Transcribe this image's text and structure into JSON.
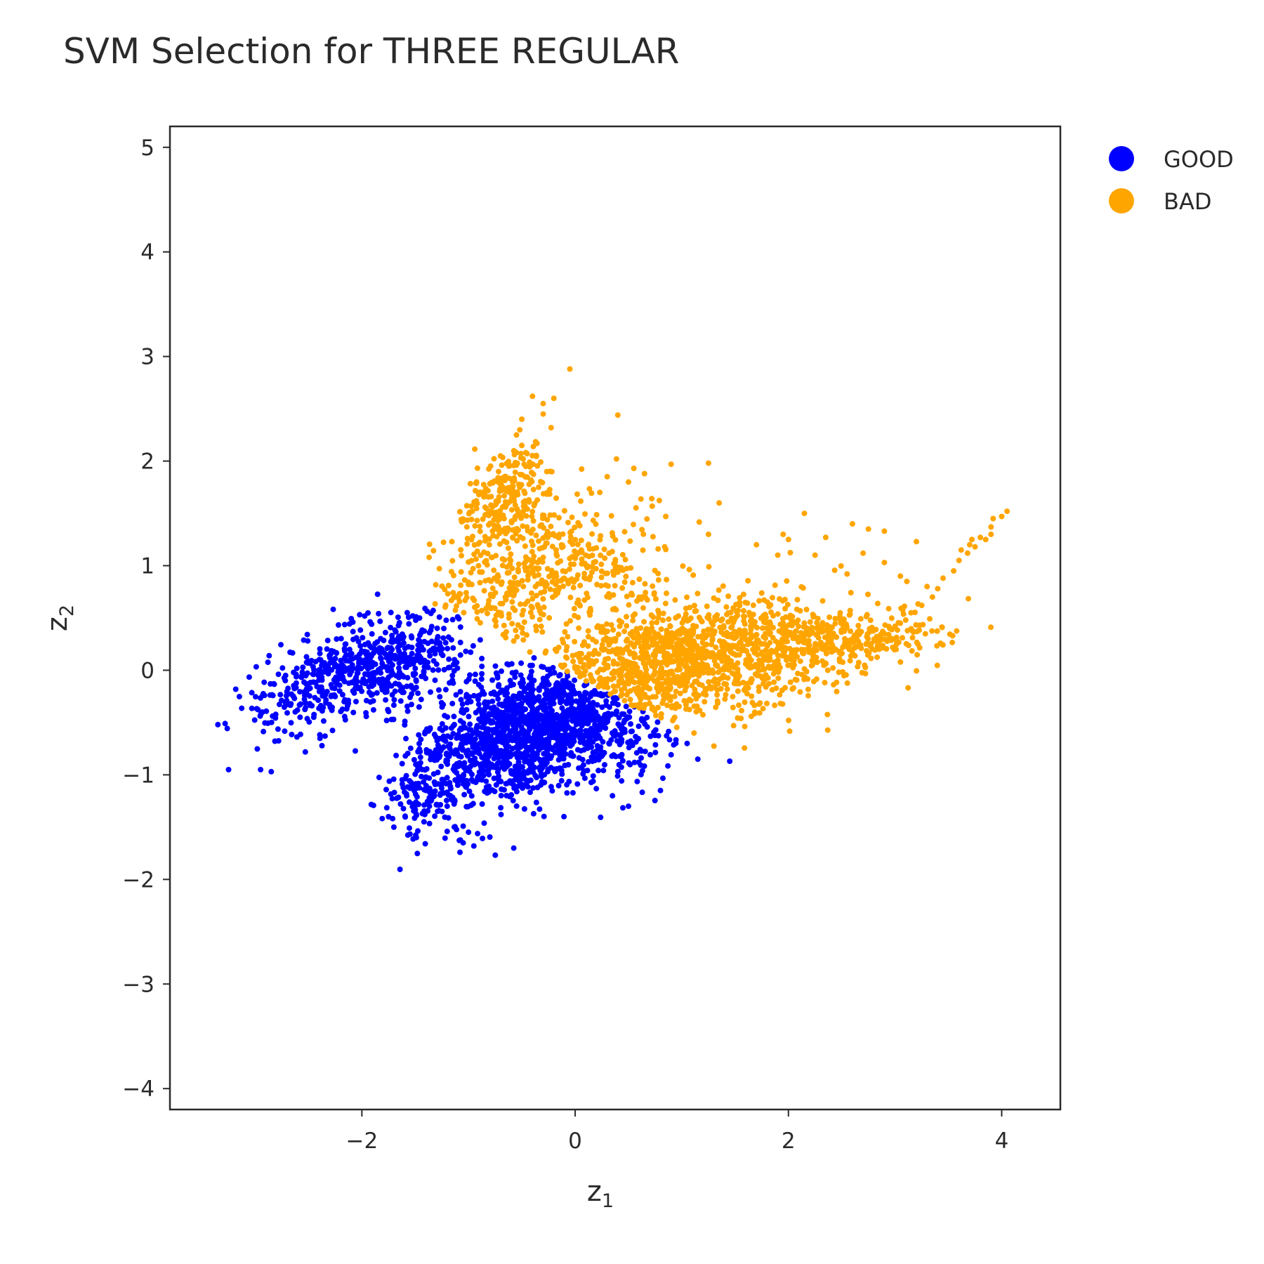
{
  "chart_data": {
    "type": "scatter",
    "title": "SVM Selection for THREE REGULAR",
    "xlabel": "z",
    "xlabel_sub": "1",
    "ylabel": "z",
    "ylabel_sub": "2",
    "xlim": [
      -3.8,
      4.55
    ],
    "ylim": [
      -4.2,
      5.2
    ],
    "xticks": [
      -2,
      0,
      2,
      4
    ],
    "yticks": [
      -4,
      -3,
      -2,
      -1,
      0,
      1,
      2,
      3,
      4,
      5
    ],
    "grid": false,
    "legend_position": "top-right",
    "series": [
      {
        "name": "GOOD",
        "color": "#0000ff",
        "clusters": [
          {
            "cx": -2.0,
            "cy": 0.0,
            "sx": 0.5,
            "sy": 0.28,
            "rho": 0.55,
            "n": 650
          },
          {
            "cx": -0.45,
            "cy": -0.55,
            "sx": 0.45,
            "sy": 0.33,
            "rho": 0.35,
            "n": 1250
          },
          {
            "cx": -1.3,
            "cy": -1.1,
            "sx": 0.25,
            "sy": 0.3,
            "rho": 0.2,
            "n": 200
          },
          {
            "cx": 0.25,
            "cy": -0.6,
            "sx": 0.35,
            "sy": 0.25,
            "rho": 0.0,
            "n": 220
          }
        ],
        "points": [
          [
            -3.35,
            -0.52
          ],
          [
            -3.25,
            -0.95
          ],
          [
            -2.95,
            -0.95
          ],
          [
            -2.85,
            -0.97
          ],
          [
            -1.75,
            -1.4
          ],
          [
            -1.7,
            -1.5
          ],
          [
            -1.05,
            -1.65
          ],
          [
            -0.95,
            -1.68
          ],
          [
            -1.2,
            -1.3
          ],
          [
            0.5,
            -1.3
          ],
          [
            0.8,
            -1.15
          ],
          [
            1.05,
            -0.7
          ],
          [
            1.45,
            -0.87
          ],
          [
            1.15,
            -0.85
          ],
          [
            0.35,
            -1.2
          ]
        ]
      },
      {
        "name": "BAD",
        "color": "#ffa500",
        "clusters": [
          {
            "cx": 1.0,
            "cy": 0.1,
            "sx": 0.75,
            "sy": 0.3,
            "rho": 0.25,
            "n": 1300
          },
          {
            "cx": -0.65,
            "cy": 1.65,
            "sx": 0.2,
            "sy": 0.25,
            "rho": 0.4,
            "n": 230
          },
          {
            "cx": -0.6,
            "cy": 0.9,
            "sx": 0.4,
            "sy": 0.45,
            "rho": 0.3,
            "n": 300
          },
          {
            "cx": 2.5,
            "cy": 0.28,
            "sx": 0.45,
            "sy": 0.13,
            "rho": 0.3,
            "n": 270
          },
          {
            "cx": 0.2,
            "cy": 1.05,
            "sx": 0.35,
            "sy": 0.25,
            "rho": 0.0,
            "n": 170
          }
        ],
        "points": [
          [
            -0.05,
            2.88
          ],
          [
            -0.4,
            2.62
          ],
          [
            -0.2,
            2.6
          ],
          [
            -0.3,
            2.55
          ],
          [
            -0.3,
            2.45
          ],
          [
            -0.5,
            2.4
          ],
          [
            0.4,
            2.44
          ],
          [
            -0.55,
            2.25
          ],
          [
            -0.5,
            2.15
          ],
          [
            0.55,
            1.93
          ],
          [
            0.65,
            1.88
          ],
          [
            0.9,
            1.97
          ],
          [
            1.25,
            1.98
          ],
          [
            0.5,
            1.8
          ],
          [
            1.35,
            1.6
          ],
          [
            0.85,
            1.47
          ],
          [
            2.15,
            1.5
          ],
          [
            1.25,
            1.3
          ],
          [
            2.0,
            1.25
          ],
          [
            2.35,
            1.27
          ],
          [
            2.6,
            1.4
          ],
          [
            2.75,
            1.35
          ],
          [
            2.9,
            1.33
          ],
          [
            3.2,
            1.23
          ],
          [
            2.9,
            1.03
          ],
          [
            2.7,
            1.12
          ],
          [
            3.05,
            0.9
          ],
          [
            3.3,
            0.8
          ],
          [
            3.4,
            0.78
          ],
          [
            3.45,
            0.88
          ],
          [
            3.55,
            0.95
          ],
          [
            3.6,
            1.05
          ],
          [
            3.62,
            1.15
          ],
          [
            3.68,
            1.12
          ],
          [
            3.7,
            1.2
          ],
          [
            3.72,
            1.25
          ],
          [
            3.75,
            1.18
          ],
          [
            3.8,
            1.27
          ],
          [
            3.85,
            1.25
          ],
          [
            3.9,
            1.3
          ],
          [
            3.9,
            1.37
          ],
          [
            3.92,
            1.45
          ],
          [
            4.0,
            1.47
          ],
          [
            4.05,
            1.52
          ],
          [
            3.35,
            0.7
          ],
          [
            3.25,
            0.62
          ],
          [
            3.15,
            0.55
          ],
          [
            3.05,
            0.45
          ],
          [
            3.0,
            0.42
          ],
          [
            2.95,
            0.4
          ],
          [
            3.1,
            0.48
          ],
          [
            1.9,
            1.1
          ],
          [
            1.7,
            1.2
          ],
          [
            1.95,
            1.3
          ],
          [
            2.25,
            1.1
          ],
          [
            2.55,
            0.92
          ]
        ]
      }
    ]
  }
}
